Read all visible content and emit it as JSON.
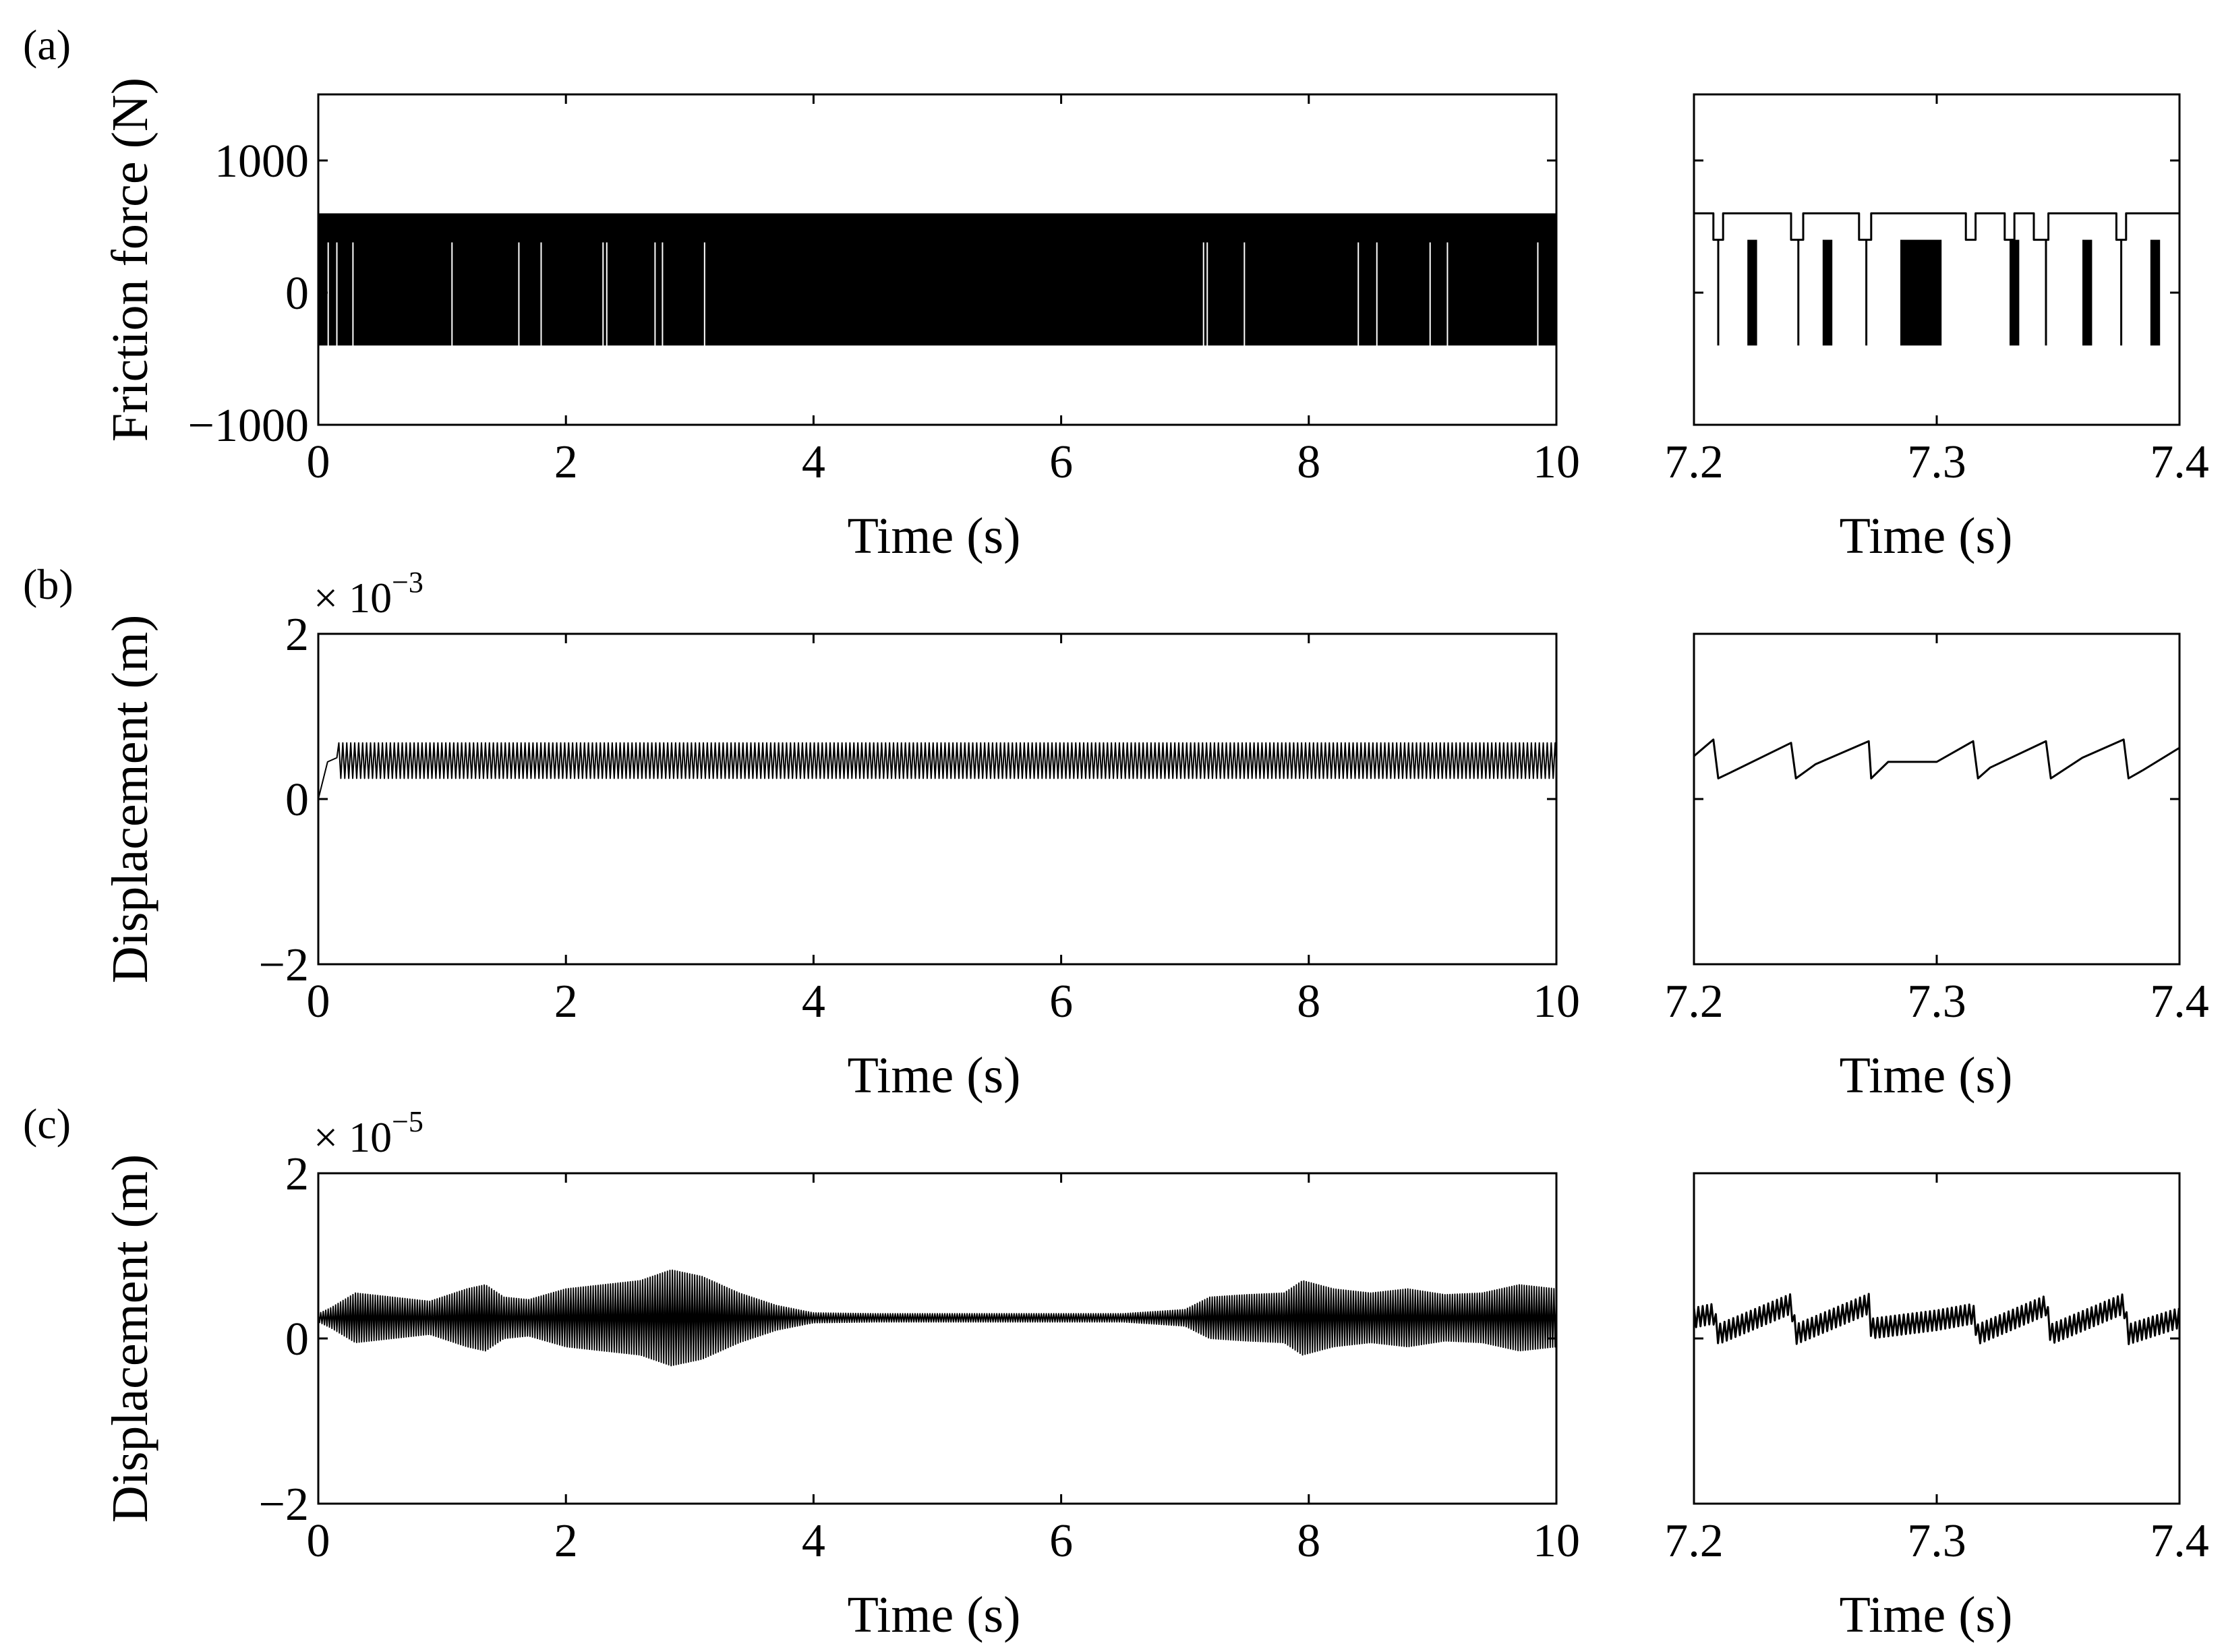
{
  "figure": {
    "panels": [
      {
        "label": "(a)",
        "ylabel": "Friction force (N)",
        "multiplier": null,
        "main_xlabel": "Time (s)",
        "zoom_xlabel": "Time (s)"
      },
      {
        "label": "(b)",
        "ylabel": "Displacement (m)",
        "multiplier": {
          "base": "× 10",
          "exponent": "−3"
        },
        "main_xlabel": "Time (s)",
        "zoom_xlabel": "Time (s)"
      },
      {
        "label": "(c)",
        "ylabel": "Displacement (m)",
        "multiplier": {
          "base": "× 10",
          "exponent": "−5"
        },
        "main_xlabel": "Time (s)",
        "zoom_xlabel": "Time (s)"
      }
    ]
  },
  "chart_data": [
    {
      "id": "a-main",
      "type": "line",
      "title": "",
      "xlabel": "Time (s)",
      "ylabel": "Friction force (N)",
      "xlim": [
        0,
        10
      ],
      "ylim": [
        -1000,
        1500
      ],
      "xticks": [
        0,
        2,
        4,
        6,
        8,
        10
      ],
      "xtick_labels": [
        "0",
        "2",
        "4",
        "6",
        "8",
        "10"
      ],
      "yticks": [
        -1000,
        0,
        1000
      ],
      "ytick_labels": [
        "−1000",
        "0",
        "1000"
      ],
      "signal": {
        "kind": "stick-slip-band",
        "upper": 600,
        "lower": -400,
        "mid_level": 380
      },
      "series": [
        {
          "x": [
            0,
            10
          ],
          "y": [
            600,
            600
          ]
        }
      ],
      "gaps": [
        0.08,
        0.15,
        0.28,
        1.08,
        1.62,
        1.8,
        2.3,
        2.33,
        2.72,
        2.78,
        3.12,
        7.15,
        7.18,
        7.48,
        8.4,
        8.55,
        8.98,
        9.12,
        9.85
      ]
    },
    {
      "id": "a-zoom",
      "type": "line",
      "title": "",
      "xlabel": "Time (s)",
      "ylabel": "",
      "xlim": [
        7.2,
        7.4
      ],
      "ylim": [
        -1000,
        1500
      ],
      "xticks": [
        7.2,
        7.3,
        7.4
      ],
      "xtick_labels": [
        "7.2",
        "7.3",
        "7.4"
      ],
      "yticks": [
        -1000,
        0,
        1000
      ],
      "ytick_labels": [],
      "signal": {
        "kind": "stick-slip-zoom",
        "upper": 600,
        "lower": -400,
        "notch": 400
      },
      "notches": [
        [
          7.208,
          7.212
        ],
        [
          7.24,
          7.245
        ],
        [
          7.268,
          7.273
        ],
        [
          7.312,
          7.316
        ],
        [
          7.328,
          7.332
        ],
        [
          7.34,
          7.346
        ],
        [
          7.374,
          7.378
        ]
      ],
      "dense_bursts": [
        [
          7.222,
          7.226
        ],
        [
          7.253,
          7.257
        ],
        [
          7.285,
          7.302
        ],
        [
          7.33,
          7.334
        ],
        [
          7.36,
          7.364
        ],
        [
          7.388,
          7.392
        ]
      ],
      "spikes": [
        7.21,
        7.243,
        7.271,
        7.345,
        7.376
      ]
    },
    {
      "id": "b-main",
      "type": "line",
      "title": "",
      "xlabel": "Time (s)",
      "ylabel": "Displacement (m)",
      "xlim": [
        0,
        10
      ],
      "ylim": [
        -2,
        2
      ],
      "y_multiplier": "1e-3",
      "xticks": [
        0,
        2,
        4,
        6,
        8,
        10
      ],
      "xtick_labels": [
        "0",
        "2",
        "4",
        "6",
        "8",
        "10"
      ],
      "yticks": [
        -2,
        0,
        2
      ],
      "ytick_labels": [
        "−2",
        "0",
        "2"
      ],
      "signal": {
        "kind": "band",
        "start": 0.0,
        "rise_to": 0.5,
        "rise_time": 0.15,
        "upper": 0.68,
        "lower": 0.25,
        "period": 0.032
      }
    },
    {
      "id": "b-zoom",
      "type": "line",
      "title": "",
      "xlabel": "Time (s)",
      "ylabel": "",
      "xlim": [
        7.2,
        7.4
      ],
      "ylim": [
        -2,
        2
      ],
      "y_multiplier": "1e-3",
      "xticks": [
        7.2,
        7.3,
        7.4
      ],
      "xtick_labels": [
        "7.2",
        "7.3",
        "7.4"
      ],
      "yticks": [
        -2,
        0,
        2
      ],
      "ytick_labels": [],
      "series": [
        {
          "x": [
            7.2,
            7.208,
            7.21,
            7.215,
            7.24,
            7.242,
            7.25,
            7.272,
            7.273,
            7.28,
            7.3,
            7.315,
            7.317,
            7.322,
            7.345,
            7.347,
            7.36,
            7.377,
            7.379,
            7.385,
            7.4
          ],
          "y": [
            0.52,
            0.72,
            0.25,
            0.32,
            0.68,
            0.25,
            0.42,
            0.7,
            0.25,
            0.45,
            0.45,
            0.7,
            0.25,
            0.38,
            0.7,
            0.25,
            0.5,
            0.72,
            0.25,
            0.35,
            0.62
          ]
        }
      ]
    },
    {
      "id": "c-main",
      "type": "line",
      "title": "",
      "xlabel": "Time (s)",
      "ylabel": "Displacement (m)",
      "xlim": [
        0,
        10
      ],
      "ylim": [
        -2,
        2
      ],
      "y_multiplier": "1e-5",
      "xticks": [
        0,
        2,
        4,
        6,
        8,
        10
      ],
      "xtick_labels": [
        "0",
        "2",
        "4",
        "6",
        "8",
        "10"
      ],
      "yticks": [
        -2,
        0,
        2
      ],
      "ytick_labels": [
        "−2",
        "0",
        "2"
      ],
      "signal": {
        "kind": "envelope",
        "center": 0.25,
        "period": 0.02
      },
      "envelope": {
        "x": [
          0,
          0.1,
          0.3,
          0.6,
          0.9,
          1.2,
          1.35,
          1.5,
          1.7,
          2.0,
          2.3,
          2.6,
          2.85,
          3.1,
          3.4,
          3.7,
          4.0,
          4.5,
          5.0,
          5.5,
          6.0,
          6.5,
          7.0,
          7.2,
          7.5,
          7.8,
          7.95,
          8.2,
          8.5,
          8.8,
          9.1,
          9.4,
          9.7,
          10
        ],
        "amp": [
          0.05,
          0.12,
          0.3,
          0.25,
          0.2,
          0.35,
          0.4,
          0.25,
          0.22,
          0.35,
          0.4,
          0.45,
          0.58,
          0.5,
          0.3,
          0.15,
          0.06,
          0.05,
          0.05,
          0.05,
          0.05,
          0.05,
          0.1,
          0.25,
          0.28,
          0.3,
          0.45,
          0.35,
          0.3,
          0.35,
          0.28,
          0.3,
          0.4,
          0.35
        ]
      }
    },
    {
      "id": "c-zoom",
      "type": "line",
      "title": "",
      "xlabel": "Time (s)",
      "ylabel": "",
      "xlim": [
        7.2,
        7.4
      ],
      "ylim": [
        -2,
        2
      ],
      "y_multiplier": "1e-5",
      "xticks": [
        7.2,
        7.3,
        7.4
      ],
      "xtick_labels": [
        "7.2",
        "7.3",
        "7.4"
      ],
      "yticks": [
        -2,
        0,
        2
      ],
      "ytick_labels": [],
      "signal": {
        "kind": "sawtooth-ripple",
        "ripple_amp": 0.12,
        "ripple_period": 0.0018
      },
      "base": {
        "x": [
          7.2,
          7.208,
          7.21,
          7.24,
          7.242,
          7.272,
          7.273,
          7.3,
          7.315,
          7.317,
          7.345,
          7.347,
          7.377,
          7.379,
          7.4
        ],
        "y": [
          0.25,
          0.3,
          0.05,
          0.42,
          0.05,
          0.42,
          0.12,
          0.22,
          0.3,
          0.05,
          0.4,
          0.05,
          0.42,
          0.05,
          0.25
        ]
      }
    }
  ]
}
